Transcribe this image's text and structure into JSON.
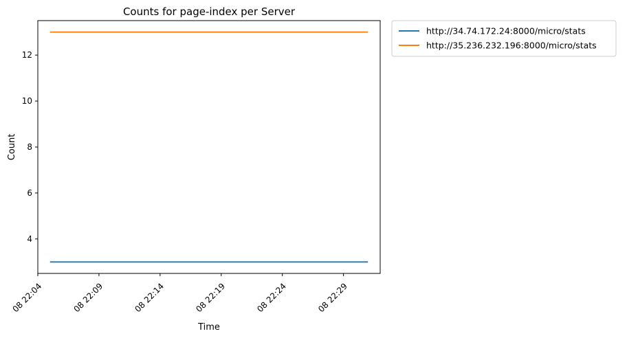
{
  "chart_data": {
    "type": "line",
    "title": "Counts for page-index per Server",
    "xlabel": "Time",
    "ylabel": "Count",
    "x_ticks": [
      "08 22:04",
      "08 22:09",
      "08 22:14",
      "08 22:19",
      "08 22:24",
      "08 22:29"
    ],
    "y_ticks": [
      "4",
      "6",
      "8",
      "10",
      "12"
    ],
    "xlim": [
      "08 22:04",
      "08 22:32"
    ],
    "ylim": [
      2.5,
      13.5
    ],
    "x": [
      "08 22:05",
      "08 22:31"
    ],
    "series": [
      {
        "name": "http://34.74.172.24:8000/micro/stats",
        "color": "#1f77b4",
        "values": [
          3,
          3
        ]
      },
      {
        "name": "http://35.236.232.196:8000/micro/stats",
        "color": "#ff7f0e",
        "values": [
          13,
          13
        ]
      }
    ],
    "legend_position": "outside right, top",
    "grid": false
  }
}
